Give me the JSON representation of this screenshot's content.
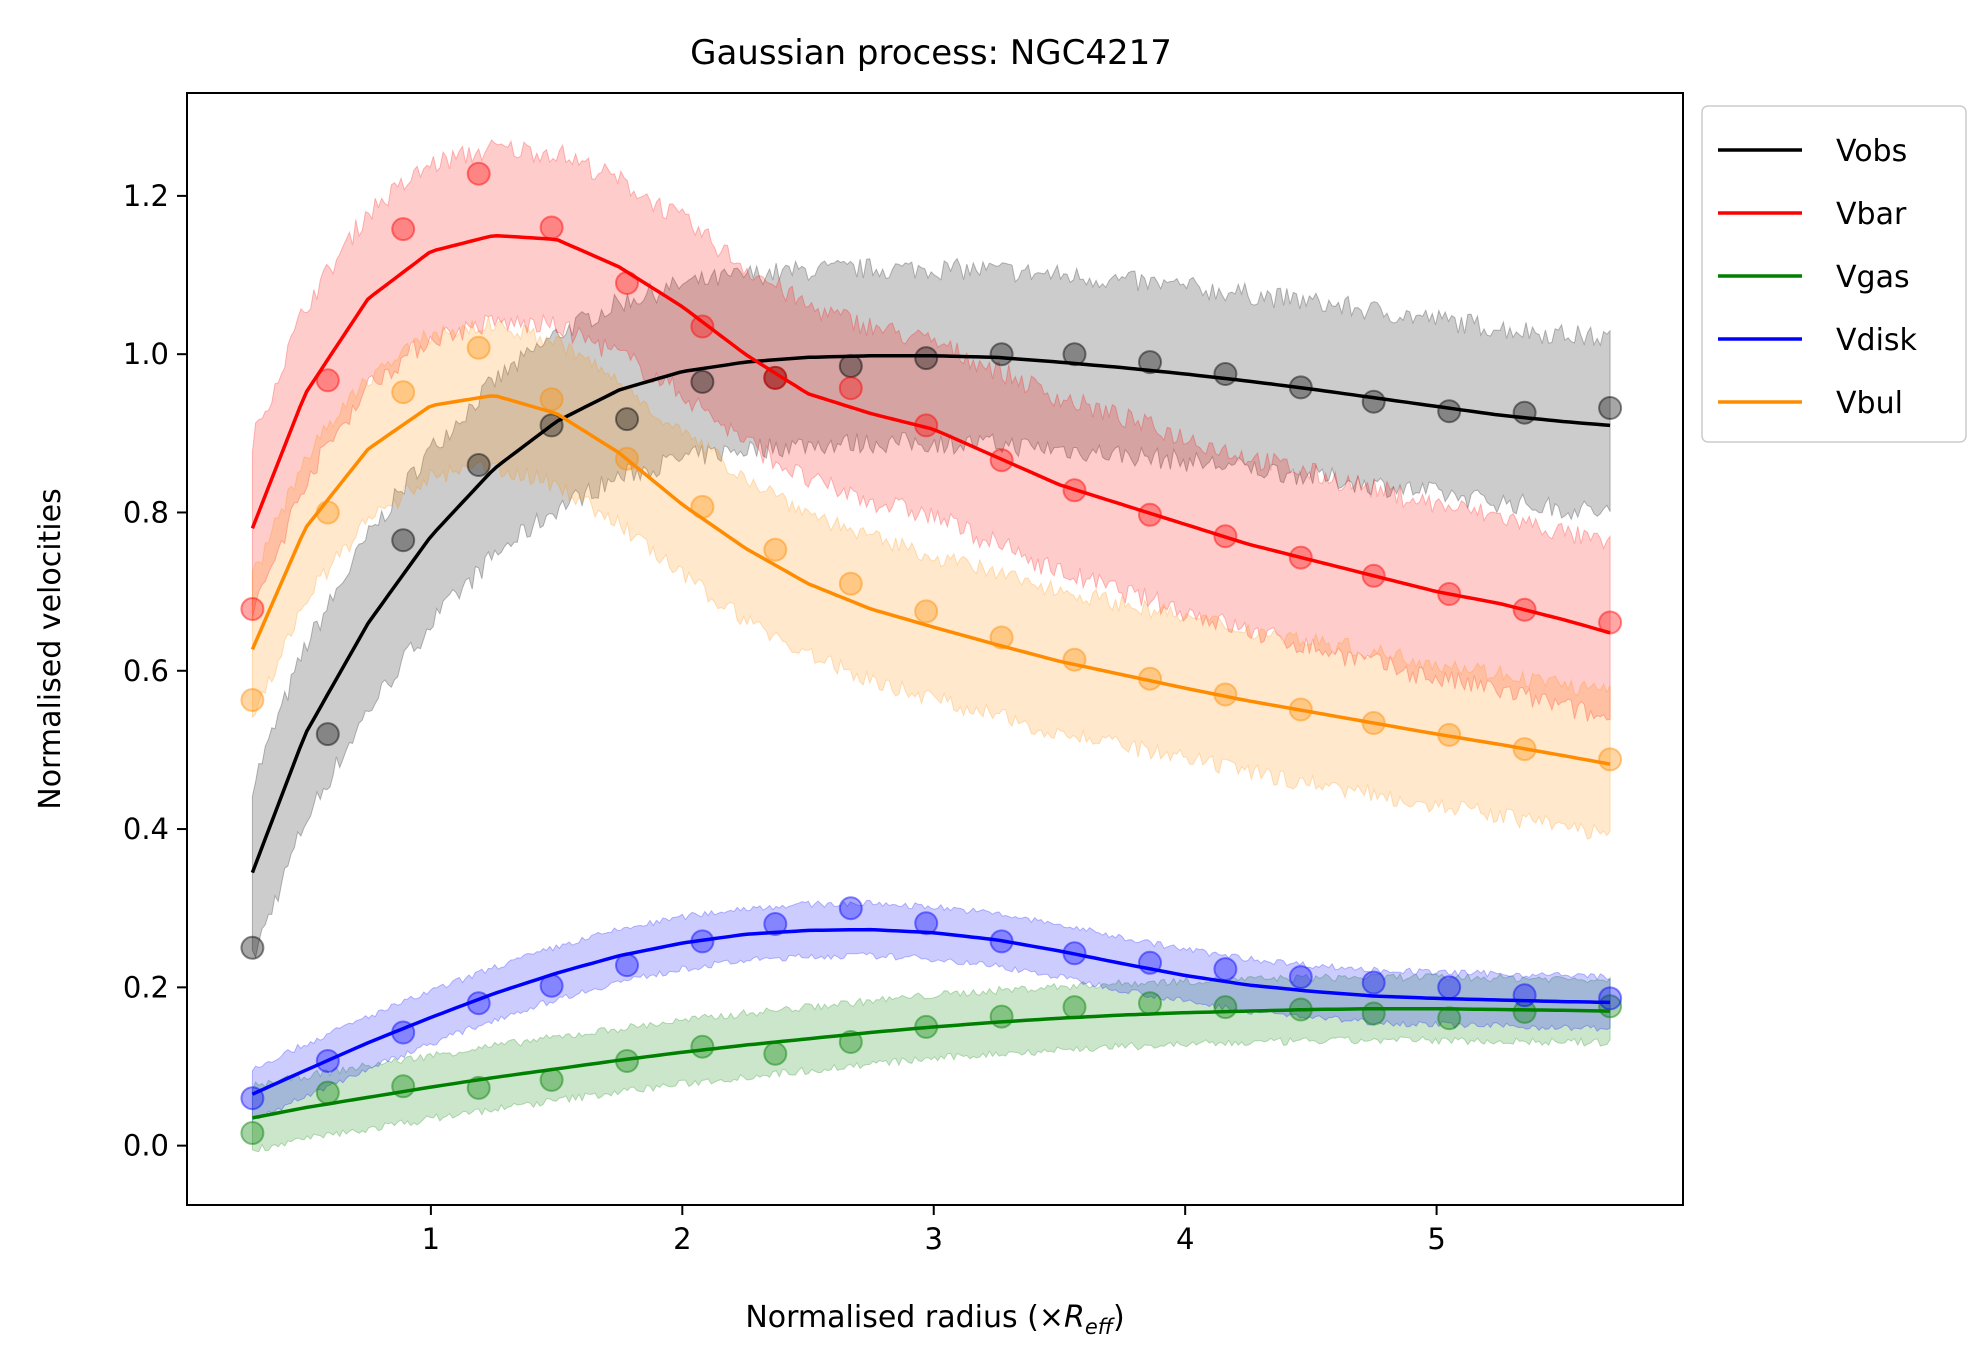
{
  "chart_data": {
    "type": "line",
    "title": "Gaussian process: NGC4217",
    "xlabel": "Normalised radius (×",
    "xlabel_math": "R",
    "xlabel_sub": "eff",
    "xlabel_close": ")",
    "ylabel": "Normalised velocities",
    "xlim": [
      0.03,
      5.98
    ],
    "ylim": [
      -0.075,
      1.33
    ],
    "xticks": [
      1,
      2,
      3,
      4,
      5
    ],
    "xtick_labels": [
      "1",
      "2",
      "3",
      "4",
      "5"
    ],
    "yticks": [
      0.0,
      0.2,
      0.4,
      0.6,
      0.8,
      1.0,
      1.2
    ],
    "ytick_labels": [
      "0.0",
      "0.2",
      "0.4",
      "0.6",
      "0.8",
      "1.0",
      "1.2"
    ],
    "grid": false,
    "legend_position": "outside-top-right",
    "x": [
      0.29,
      0.59,
      0.89,
      1.19,
      1.48,
      1.78,
      2.08,
      2.37,
      2.67,
      2.97,
      3.27,
      3.56,
      3.86,
      4.16,
      4.46,
      4.75,
      5.05,
      5.35,
      5.69
    ],
    "series": [
      {
        "name": "Vobs",
        "color": "#000000",
        "points": [
          0.25,
          0.52,
          0.765,
          0.86,
          0.91,
          0.918,
          0.965,
          0.97,
          0.985,
          0.995,
          1.0,
          1.0,
          0.99,
          0.975,
          0.958,
          0.94,
          0.928,
          0.926,
          0.932
        ],
        "curve_x": [
          0.29,
          0.5,
          0.75,
          1.0,
          1.25,
          1.5,
          1.75,
          2.0,
          2.25,
          2.5,
          2.75,
          3.0,
          3.25,
          3.5,
          3.75,
          4.0,
          4.25,
          4.5,
          4.75,
          5.0,
          5.25,
          5.5,
          5.69
        ],
        "curve_y": [
          0.345,
          0.52,
          0.66,
          0.77,
          0.855,
          0.915,
          0.955,
          0.978,
          0.99,
          0.996,
          0.998,
          0.998,
          0.996,
          0.99,
          0.983,
          0.975,
          0.966,
          0.956,
          0.945,
          0.934,
          0.923,
          0.915,
          0.91
        ],
        "band_half_width": 0.11
      },
      {
        "name": "Vbar",
        "color": "#ff0000",
        "points": [
          0.678,
          0.967,
          1.158,
          1.228,
          1.16,
          1.09,
          1.035,
          0.97,
          0.957,
          0.91,
          0.866,
          0.828,
          0.797,
          0.77,
          0.743,
          0.72,
          0.697,
          0.677,
          0.661
        ],
        "curve_x": [
          0.29,
          0.5,
          0.75,
          1.0,
          1.25,
          1.5,
          1.75,
          2.0,
          2.25,
          2.5,
          2.75,
          3.0,
          3.25,
          3.5,
          3.75,
          4.0,
          4.25,
          4.5,
          4.75,
          5.0,
          5.25,
          5.5,
          5.69
        ],
        "curve_y": [
          0.78,
          0.95,
          1.07,
          1.13,
          1.15,
          1.145,
          1.11,
          1.06,
          1.0,
          0.95,
          0.925,
          0.905,
          0.87,
          0.835,
          0.81,
          0.785,
          0.76,
          0.74,
          0.72,
          0.7,
          0.685,
          0.665,
          0.648
        ],
        "band_half_width": 0.11
      },
      {
        "name": "Vgas",
        "color": "#008000",
        "points": [
          0.016,
          0.067,
          0.075,
          0.073,
          0.083,
          0.107,
          0.125,
          0.116,
          0.131,
          0.15,
          0.163,
          0.175,
          0.18,
          0.175,
          0.172,
          0.167,
          0.161,
          0.169,
          0.176
        ],
        "curve_x": [
          0.29,
          0.5,
          0.75,
          1.0,
          1.25,
          1.5,
          1.75,
          2.0,
          2.25,
          2.5,
          2.75,
          3.0,
          3.25,
          3.5,
          3.75,
          4.0,
          4.25,
          4.5,
          4.75,
          5.0,
          5.25,
          5.5,
          5.69
        ],
        "curve_y": [
          0.035,
          0.048,
          0.061,
          0.074,
          0.086,
          0.097,
          0.108,
          0.118,
          0.127,
          0.135,
          0.143,
          0.15,
          0.156,
          0.161,
          0.165,
          0.168,
          0.17,
          0.172,
          0.173,
          0.173,
          0.172,
          0.171,
          0.17
        ],
        "band_half_width": 0.04
      },
      {
        "name": "Vdisk",
        "color": "#0000ff",
        "points": [
          0.06,
          0.107,
          0.143,
          0.18,
          0.202,
          0.228,
          0.258,
          0.28,
          0.3,
          0.281,
          0.258,
          0.243,
          0.231,
          0.223,
          0.213,
          0.206,
          0.2,
          0.19,
          0.186
        ],
        "curve_x": [
          0.29,
          0.5,
          0.75,
          1.0,
          1.25,
          1.5,
          1.75,
          2.0,
          2.25,
          2.5,
          2.75,
          3.0,
          3.25,
          3.5,
          3.75,
          4.0,
          4.25,
          4.5,
          4.75,
          5.0,
          5.25,
          5.5,
          5.69
        ],
        "curve_y": [
          0.065,
          0.095,
          0.13,
          0.162,
          0.192,
          0.218,
          0.24,
          0.256,
          0.267,
          0.272,
          0.273,
          0.269,
          0.26,
          0.246,
          0.23,
          0.215,
          0.203,
          0.195,
          0.189,
          0.186,
          0.184,
          0.182,
          0.181
        ],
        "band_half_width": 0.033
      },
      {
        "name": "Vbul",
        "color": "#ff8c00",
        "points": [
          0.563,
          0.8,
          0.952,
          1.008,
          0.943,
          0.868,
          0.807,
          0.753,
          0.71,
          0.675,
          0.642,
          0.614,
          0.59,
          0.57,
          0.551,
          0.534,
          0.519,
          0.501,
          0.488
        ],
        "curve_x": [
          0.29,
          0.5,
          0.75,
          1.0,
          1.25,
          1.5,
          1.75,
          2.0,
          2.25,
          2.5,
          2.75,
          3.0,
          3.25,
          3.5,
          3.75,
          4.0,
          4.25,
          4.5,
          4.75,
          5.0,
          5.25,
          5.5,
          5.69
        ],
        "curve_y": [
          0.627,
          0.78,
          0.88,
          0.935,
          0.948,
          0.925,
          0.875,
          0.81,
          0.755,
          0.71,
          0.678,
          0.655,
          0.633,
          0.612,
          0.595,
          0.578,
          0.562,
          0.548,
          0.534,
          0.52,
          0.507,
          0.493,
          0.482
        ],
        "band_half_width": 0.09
      }
    ]
  }
}
